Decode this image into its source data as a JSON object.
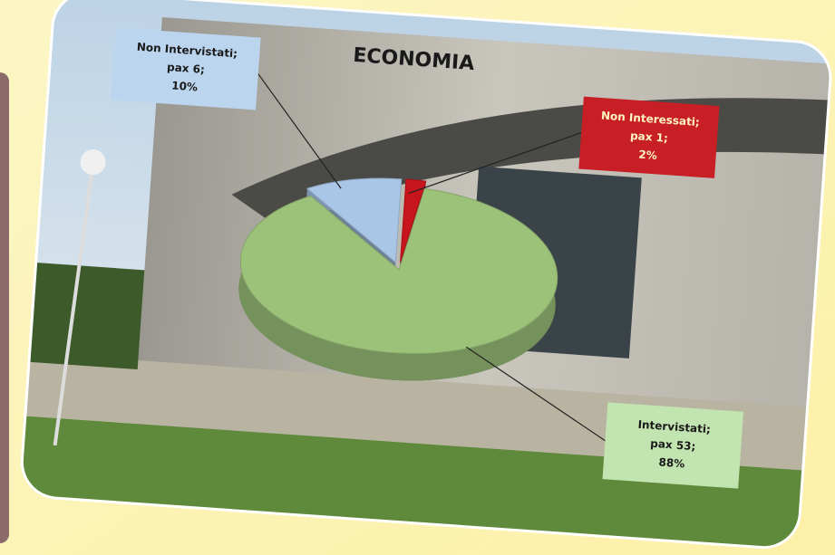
{
  "chart_data": {
    "type": "pie",
    "title": "ECONOMIA",
    "categories": [
      "Non Interessati;",
      "Intervistati;",
      "Non Intervistati;"
    ],
    "count_labels": [
      "pax 1;",
      "pax 53;",
      "pax 6;"
    ],
    "values": [
      2,
      88,
      10
    ],
    "value_labels": [
      "2%",
      "88%",
      "10%"
    ],
    "colors": [
      "#c8141c",
      "#9cc27a",
      "#a9c6e6"
    ]
  }
}
